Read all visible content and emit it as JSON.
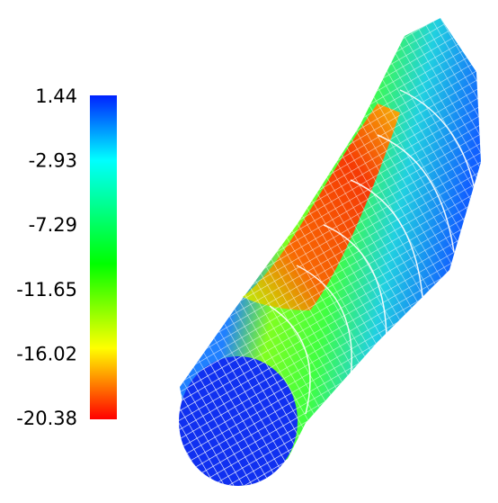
{
  "chart_data": {
    "type": "colorbar",
    "ylim": [
      -20.38,
      1.44
    ],
    "yticks": [
      1.44,
      -2.93,
      -7.29,
      -11.65,
      -16.02,
      -20.38
    ]
  }
}
